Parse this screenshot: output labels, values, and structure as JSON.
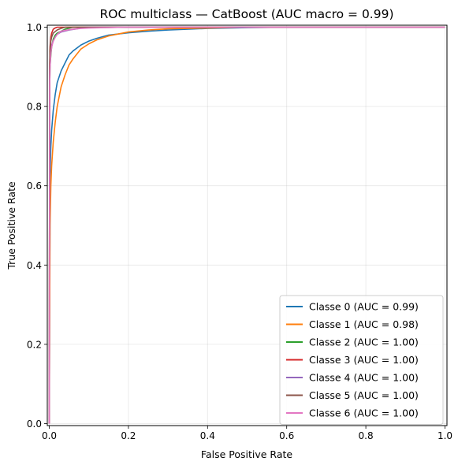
{
  "chart_data": {
    "type": "line",
    "title": "ROC multiclass — CatBoost (AUC macro = 0.99)",
    "xlabel": "False Positive Rate",
    "ylabel": "True Positive Rate",
    "xlim": [
      -0.005,
      1.005
    ],
    "ylim": [
      -0.005,
      1.005
    ],
    "xticks": [
      0.0,
      0.2,
      0.4,
      0.6,
      0.8,
      1.0
    ],
    "yticks": [
      0.0,
      0.2,
      0.4,
      0.6,
      0.8,
      1.0
    ],
    "xtick_labels": [
      "0.0",
      "0.2",
      "0.4",
      "0.6",
      "0.8",
      "1.0"
    ],
    "ytick_labels": [
      "0.0",
      "0.2",
      "0.4",
      "0.6",
      "0.8",
      "1.0"
    ],
    "grid": true,
    "legend_position": "lower-right",
    "series": [
      {
        "name": "Classe 0 (AUC = 0.99)",
        "color": "#1f77b4",
        "x": [
          0,
          0.002,
          0.004,
          0.006,
          0.01,
          0.015,
          0.02,
          0.03,
          0.04,
          0.05,
          0.06,
          0.08,
          0.1,
          0.12,
          0.15,
          0.2,
          0.25,
          0.3,
          0.4,
          0.5,
          0.6,
          0.8,
          1.0
        ],
        "y": [
          0,
          0.62,
          0.7,
          0.74,
          0.79,
          0.83,
          0.86,
          0.89,
          0.91,
          0.93,
          0.94,
          0.955,
          0.965,
          0.972,
          0.98,
          0.986,
          0.99,
          0.993,
          0.997,
          0.999,
          1.0,
          1.0,
          1.0
        ]
      },
      {
        "name": "Classe 1 (AUC = 0.98)",
        "color": "#ff7f0e",
        "x": [
          0,
          0.002,
          0.004,
          0.006,
          0.01,
          0.015,
          0.02,
          0.03,
          0.04,
          0.05,
          0.06,
          0.08,
          0.1,
          0.12,
          0.15,
          0.2,
          0.25,
          0.3,
          0.4,
          0.5,
          0.6,
          0.8,
          1.0
        ],
        "y": [
          0,
          0.5,
          0.6,
          0.65,
          0.71,
          0.76,
          0.8,
          0.85,
          0.88,
          0.905,
          0.92,
          0.945,
          0.958,
          0.968,
          0.978,
          0.988,
          0.993,
          0.996,
          0.998,
          1.0,
          1.0,
          1.0,
          1.0
        ]
      },
      {
        "name": "Classe 2 (AUC = 1.00)",
        "color": "#2ca02c",
        "x": [
          0,
          0.001,
          0.002,
          0.004,
          0.006,
          0.008,
          0.01,
          0.015,
          0.02,
          0.03,
          0.04,
          0.06,
          1.0
        ],
        "y": [
          0,
          0.85,
          0.9,
          0.93,
          0.95,
          0.96,
          0.97,
          0.98,
          0.985,
          0.99,
          0.995,
          1.0,
          1.0
        ]
      },
      {
        "name": "Classe 3 (AUC = 1.00)",
        "color": "#d62728",
        "x": [
          0,
          0.001,
          0.002,
          0.004,
          0.006,
          0.008,
          0.01,
          0.015,
          0.02,
          1.0
        ],
        "y": [
          0,
          0.9,
          0.95,
          0.975,
          0.985,
          0.99,
          0.995,
          0.998,
          1.0,
          1.0
        ]
      },
      {
        "name": "Classe 4 (AUC = 1.00)",
        "color": "#9467bd",
        "x": [
          0,
          0.001,
          0.002,
          0.004,
          0.006,
          0.01,
          0.015,
          0.02,
          0.03,
          0.05,
          0.07,
          0.09,
          1.0
        ],
        "y": [
          0,
          0.88,
          0.92,
          0.94,
          0.955,
          0.965,
          0.975,
          0.982,
          0.988,
          0.993,
          0.996,
          1.0,
          1.0
        ]
      },
      {
        "name": "Classe 5 (AUC = 1.00)",
        "color": "#8c564b",
        "x": [
          0,
          0.001,
          0.002,
          0.004,
          0.006,
          0.01,
          0.02,
          0.03,
          0.04,
          1.0
        ],
        "y": [
          0,
          0.9,
          0.94,
          0.965,
          0.975,
          0.985,
          0.993,
          0.997,
          1.0,
          1.0
        ]
      },
      {
        "name": "Classe 6 (AUC = 1.00)",
        "color": "#e377c2",
        "x": [
          0,
          0.001,
          0.002,
          0.004,
          0.006,
          0.01,
          0.015,
          0.02,
          0.03,
          0.05,
          0.08,
          0.1,
          0.15,
          0.19,
          1.0
        ],
        "y": [
          0,
          0.85,
          0.9,
          0.935,
          0.95,
          0.965,
          0.975,
          0.982,
          0.99,
          0.994,
          0.997,
          0.998,
          0.999,
          1.0,
          1.0
        ]
      }
    ]
  }
}
